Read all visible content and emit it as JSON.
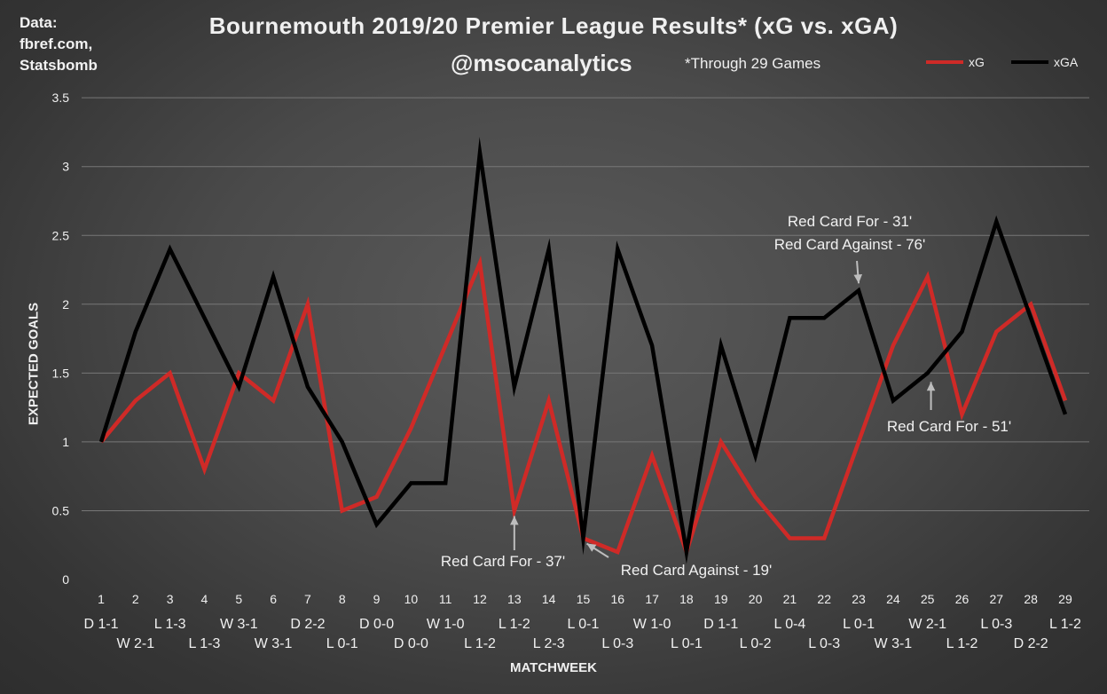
{
  "source_text": "Data:\nfbref.com,\nStatsbomb",
  "chart_data": {
    "type": "line",
    "title": "Bournemouth 2019/20 Premier League Results* (xG vs. xGA)",
    "subtitle": "@msocanalytics",
    "note": "*Through 29 Games",
    "xlabel": "MATCHWEEK",
    "ylabel": "EXPECTED GOALS",
    "ylim": [
      0,
      3.5
    ],
    "yticks": [
      "0",
      "0.5",
      "1",
      "1.5",
      "2",
      "2.5",
      "3",
      "3.5"
    ],
    "grid": true,
    "legend_position": "top-right",
    "x": [
      1,
      2,
      3,
      4,
      5,
      6,
      7,
      8,
      9,
      10,
      11,
      12,
      13,
      14,
      15,
      16,
      17,
      18,
      19,
      20,
      21,
      22,
      23,
      24,
      25,
      26,
      27,
      28,
      29
    ],
    "results": [
      "D 1-1",
      "W 2-1",
      "L 1-3",
      "L 1-3",
      "W 3-1",
      "W 3-1",
      "D 2-2",
      "L 0-1",
      "D 0-0",
      "D 0-0",
      "W 1-0",
      "L 1-2",
      "L 1-2",
      "L 2-3",
      "L 0-1",
      "L 0-3",
      "W 1-0",
      "L 0-1",
      "D 1-1",
      "L 0-2",
      "L 0-4",
      "L 0-3",
      "L 0-1",
      "W 3-1",
      "W 2-1",
      "L 1-2",
      "L 0-3",
      "D 2-2",
      "L 1-2"
    ],
    "series": [
      {
        "name": "xG",
        "color": "#cf2a27",
        "values": [
          1.0,
          1.3,
          1.5,
          0.8,
          1.5,
          1.3,
          2.0,
          0.5,
          0.6,
          1.1,
          1.7,
          2.3,
          0.5,
          1.3,
          0.3,
          0.2,
          0.9,
          0.2,
          1.0,
          0.6,
          0.3,
          0.3,
          1.0,
          1.7,
          2.2,
          1.2,
          1.8,
          2.0,
          1.3
        ]
      },
      {
        "name": "xGA",
        "color": "#000000",
        "values": [
          1.0,
          1.8,
          2.4,
          1.9,
          1.4,
          2.2,
          1.4,
          1.0,
          0.4,
          0.7,
          0.7,
          3.1,
          1.4,
          2.4,
          0.3,
          2.4,
          1.7,
          0.2,
          1.7,
          0.9,
          1.9,
          1.9,
          2.1,
          1.3,
          1.5,
          1.8,
          2.6,
          1.9,
          1.2
        ]
      }
    ],
    "annotations": [
      {
        "lines": [
          "Red Card For - 37'"
        ],
        "x": 13,
        "y": 0.5
      },
      {
        "lines": [
          "Red Card Against - 19'"
        ],
        "x": 15,
        "y": 0.3
      },
      {
        "lines": [
          "Red Card For - 31'",
          "Red Card Against - 76'"
        ],
        "x": 23,
        "y": 2.1
      },
      {
        "lines": [
          "Red Card For - 51'"
        ],
        "x": 25.1,
        "y": 1.5
      }
    ]
  }
}
